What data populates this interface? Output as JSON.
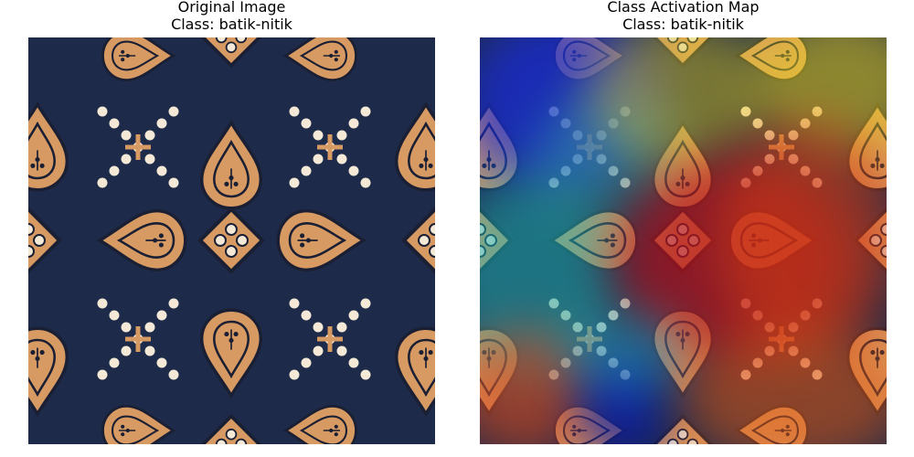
{
  "panels": [
    {
      "line1": "Original Image",
      "line2": "Class: batik-nitik"
    },
    {
      "line1": "Class Activation Map",
      "line2": "Class: batik-nitik"
    }
  ],
  "colors": {
    "fabric": "#1d2a4a",
    "motif": "#d79a63",
    "motif_dark": "#1a1f33",
    "dot": "#f4e9d6"
  }
}
